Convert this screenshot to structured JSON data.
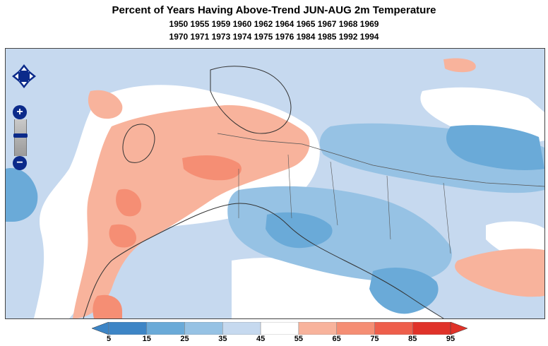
{
  "title": "Percent of Years Having Above-Trend JUN-AUG 2m Temperature",
  "subtitle_line1": "1950 1955 1959 1960 1962 1964 1965 1967 1968 1969",
  "subtitle_line2": "1970 1971 1973 1974 1975 1976 1984 1985 1992 1994",
  "map_controls": {
    "pan_icon": "pan-arrows-icon",
    "zoom_in_label": "+",
    "zoom_out_label": "−"
  },
  "legend": {
    "bins": [
      {
        "from": 5,
        "to": 15,
        "color": "#3d85c6"
      },
      {
        "from": 15,
        "to": 25,
        "color": "#6aaad8"
      },
      {
        "from": 25,
        "to": 35,
        "color": "#96c2e4"
      },
      {
        "from": 35,
        "to": 45,
        "color": "#c6d9ef"
      },
      {
        "from": 45,
        "to": 55,
        "color": "#ffffff"
      },
      {
        "from": 55,
        "to": 65,
        "color": "#f8b39c"
      },
      {
        "from": 65,
        "to": 75,
        "color": "#f58e74"
      },
      {
        "from": 75,
        "to": 85,
        "color": "#ee5e4b"
      },
      {
        "from": 85,
        "to": 95,
        "color": "#e03229"
      }
    ],
    "tick_labels": [
      "5",
      "15",
      "25",
      "35",
      "45",
      "55",
      "65",
      "75",
      "85",
      "95"
    ]
  }
}
